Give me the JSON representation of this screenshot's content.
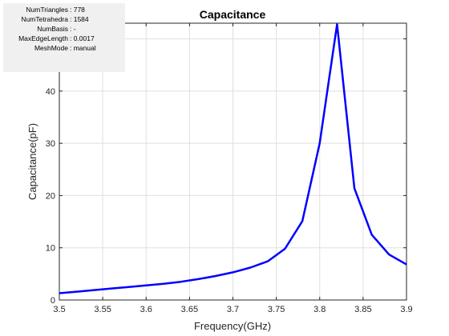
{
  "mesh_info": [
    {
      "label": "NumTriangles",
      "value": ": 778"
    },
    {
      "label": "NumTetrahedra",
      "value": ": 1584"
    },
    {
      "label": "NumBasis",
      "value": ": -"
    },
    {
      "label": "MaxEdgeLength",
      "value": ": 0.0017"
    },
    {
      "label": "MeshMode",
      "value": ": manual"
    }
  ],
  "chart_data": {
    "type": "line",
    "title": "Capacitance",
    "xlabel": "Frequency(GHz)",
    "ylabel": "Capacitance(pF)",
    "xlim": [
      3.5,
      3.9
    ],
    "ylim": [
      0,
      53
    ],
    "x_ticks": [
      "3.5",
      "3.55",
      "3.6",
      "3.65",
      "3.7",
      "3.75",
      "3.8",
      "3.85",
      "3.9"
    ],
    "y_ticks": [
      "0",
      "10",
      "20",
      "30",
      "40",
      "50"
    ],
    "grid": true,
    "line_color": "#0000ff",
    "series": [
      {
        "x": [
          3.5,
          3.52,
          3.54,
          3.56,
          3.58,
          3.6,
          3.62,
          3.64,
          3.66,
          3.68,
          3.7,
          3.72,
          3.74,
          3.76,
          3.78,
          3.8,
          3.82,
          3.84,
          3.86,
          3.88,
          3.9
        ],
        "values": [
          1.3,
          1.6,
          1.9,
          2.2,
          2.5,
          2.8,
          3.1,
          3.5,
          4.0,
          4.6,
          5.3,
          6.2,
          7.4,
          9.8,
          15.1,
          30.0,
          52.8,
          21.4,
          12.5,
          8.7,
          6.8
        ]
      }
    ]
  }
}
